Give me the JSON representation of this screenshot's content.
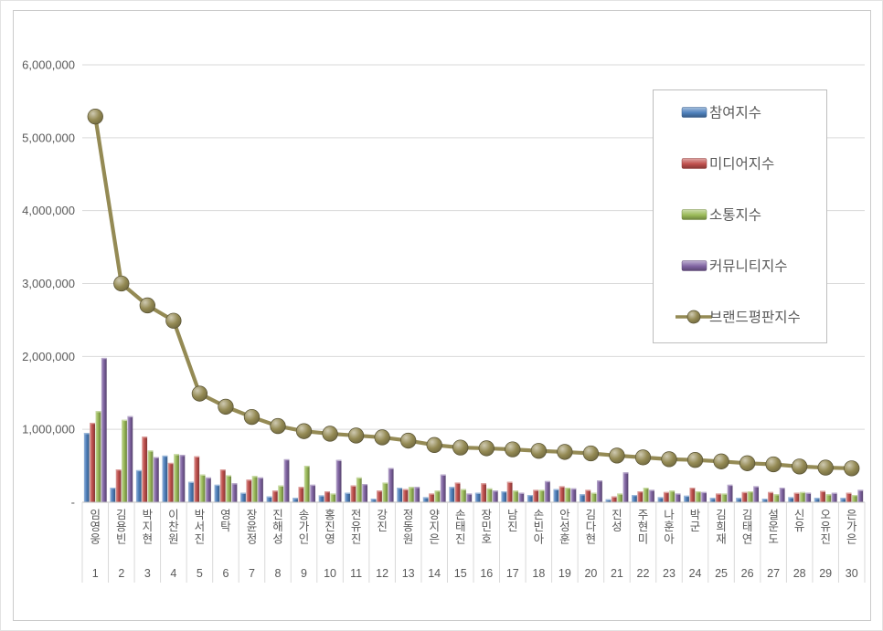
{
  "frame": {
    "background": "#ffffff",
    "outer_border_color": "#e3e3e3",
    "inner_border_color": "#cbcbcb",
    "text_color": "#595959",
    "gridline_color": "#d9d9d9",
    "axis_line_color": "#bfbfbf",
    "separator_color": "#d9d9d9",
    "legend_border_color": "#bdbdbd"
  },
  "chart_data": {
    "type": "bar+line",
    "title": "",
    "xlabel": "",
    "ylabel": "",
    "grid": true,
    "legend_position": "right-top",
    "categories": [
      "임영웅",
      "김용빈",
      "박지현",
      "이찬원",
      "박서진",
      "영탁",
      "장윤정",
      "진해성",
      "송가인",
      "홍진영",
      "전유진",
      "강진",
      "정동원",
      "양지은",
      "손태진",
      "장민호",
      "남진",
      "손빈아",
      "안성훈",
      "김다현",
      "진성",
      "주현미",
      "나훈아",
      "박군",
      "김희재",
      "김태연",
      "설운도",
      "신유",
      "오유진",
      "은가은"
    ],
    "ranks": [
      1,
      2,
      3,
      4,
      5,
      6,
      7,
      8,
      9,
      10,
      11,
      12,
      13,
      14,
      15,
      16,
      17,
      18,
      19,
      20,
      21,
      22,
      23,
      24,
      25,
      26,
      27,
      28,
      29,
      30
    ],
    "y_axis": {
      "min": 0,
      "max": 6000000,
      "tick_interval": 1000000,
      "tick_labels": [
        "-",
        "1,000,000",
        "2,000,000",
        "3,000,000",
        "4,000,000",
        "5,000,000",
        "6,000,000"
      ]
    },
    "series": [
      {
        "name": "참여지수",
        "type": "bar",
        "color": "#4f81bd",
        "values": [
          950000,
          200000,
          440000,
          640000,
          280000,
          240000,
          130000,
          80000,
          60000,
          95000,
          130000,
          50000,
          200000,
          70000,
          210000,
          130000,
          150000,
          100000,
          180000,
          110000,
          40000,
          100000,
          70000,
          90000,
          60000,
          60000,
          50000,
          70000,
          60000,
          60000
        ]
      },
      {
        "name": "미디어지수",
        "type": "bar",
        "color": "#c0504d",
        "values": [
          1090000,
          450000,
          900000,
          540000,
          630000,
          450000,
          310000,
          160000,
          210000,
          150000,
          230000,
          160000,
          180000,
          120000,
          270000,
          260000,
          280000,
          170000,
          220000,
          170000,
          80000,
          150000,
          140000,
          200000,
          120000,
          140000,
          140000,
          130000,
          155000,
          130000
        ]
      },
      {
        "name": "소통지수",
        "type": "bar",
        "color": "#9bbb59",
        "values": [
          1250000,
          1130000,
          710000,
          660000,
          380000,
          370000,
          360000,
          230000,
          500000,
          120000,
          340000,
          270000,
          210000,
          160000,
          180000,
          190000,
          160000,
          170000,
          200000,
          130000,
          120000,
          200000,
          160000,
          150000,
          120000,
          150000,
          110000,
          140000,
          110000,
          100000
        ]
      },
      {
        "name": "커뮤니티지수",
        "type": "bar",
        "color": "#8064a2",
        "values": [
          1980000,
          1180000,
          620000,
          650000,
          340000,
          260000,
          340000,
          590000,
          240000,
          580000,
          250000,
          470000,
          210000,
          380000,
          120000,
          160000,
          130000,
          290000,
          190000,
          300000,
          410000,
          170000,
          120000,
          140000,
          240000,
          220000,
          200000,
          130000,
          130000,
          170000
        ]
      },
      {
        "name": "브랜드평판지수",
        "type": "line",
        "color": "#948a54",
        "values": [
          5290000,
          3000000,
          2700000,
          2490000,
          1490000,
          1310000,
          1170000,
          1045000,
          975000,
          940000,
          915000,
          890000,
          845000,
          785000,
          750000,
          740000,
          725000,
          705000,
          690000,
          670000,
          640000,
          615000,
          590000,
          580000,
          560000,
          535000,
          520000,
          490000,
          475000,
          465000
        ]
      }
    ]
  }
}
